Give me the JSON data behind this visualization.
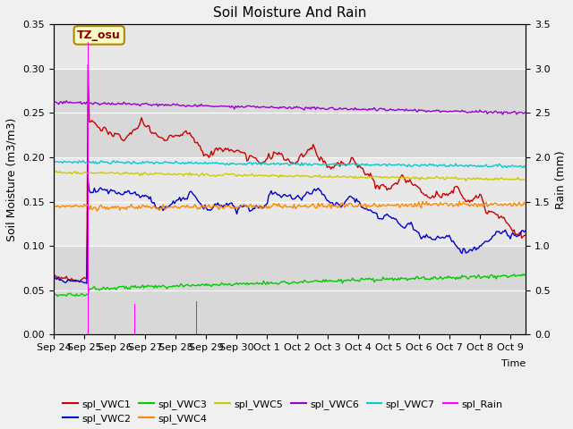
{
  "title": "Soil Moisture And Rain",
  "xlabel": "Time",
  "ylabel_left": "Soil Moisture (m3/m3)",
  "ylabel_right": "Rain (mm)",
  "annotation": "TZ_osu",
  "bg_color": "#f0f0f0",
  "ylim_left": [
    0.0,
    0.35
  ],
  "ylim_right": [
    0.0,
    3.5
  ],
  "vwc1_color": "#cc0000",
  "vwc2_color": "#0000cc",
  "vwc3_color": "#00cc00",
  "vwc4_color": "#ff8800",
  "vwc5_color": "#cccc00",
  "vwc6_color": "#9900cc",
  "vwc7_color": "#00cccc",
  "rain_color": "#ff00ff",
  "tick_labels": [
    "Sep 24",
    "Sep 25",
    "Sep 26",
    "Sep 27",
    "Sep 28",
    "Sep 29",
    "Sep 30",
    "Oct 1",
    "Oct 2",
    "Oct 3",
    "Oct 4",
    "Oct 5",
    "Oct 6",
    "Oct 7",
    "Oct 8",
    "Oct 9"
  ],
  "band_colors": [
    "#d8d8d8",
    "#e8e8e8"
  ],
  "band_edges": [
    0.0,
    0.1,
    0.2,
    0.3,
    0.4
  ]
}
